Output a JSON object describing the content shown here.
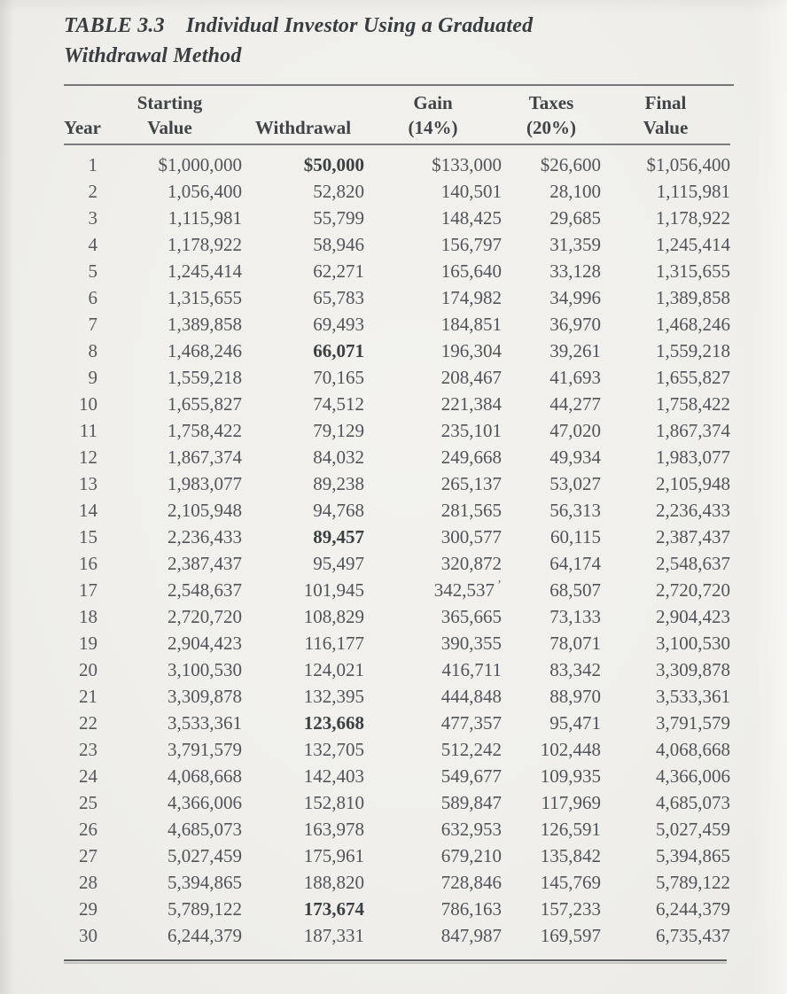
{
  "title": {
    "label": "TABLE 3.3",
    "line1_text": "Individual Investor Using a Graduated",
    "line2_text": "Withdrawal Method"
  },
  "table": {
    "columns": [
      {
        "id": "year",
        "line1": "",
        "line2": "Year"
      },
      {
        "id": "starting_value",
        "line1": "Starting",
        "line2": "Value"
      },
      {
        "id": "withdrawal",
        "line1": "",
        "line2": "Withdrawal"
      },
      {
        "id": "gain",
        "line1": "Gain",
        "line2": "(14%)"
      },
      {
        "id": "taxes",
        "line1": "Taxes",
        "line2": "(20%)"
      },
      {
        "id": "final_value",
        "line1": "Final",
        "line2": "Value"
      }
    ],
    "bold_withdrawal_years": [
      1,
      8,
      15,
      22,
      29
    ],
    "pen_mark": {
      "year": 17,
      "glyph": "ʼ"
    },
    "rows": [
      {
        "year": "1",
        "starting_value": "$1,000,000",
        "withdrawal": "$50,000",
        "gain": "$133,000",
        "taxes": "$26,600",
        "final_value": "$1,056,400"
      },
      {
        "year": "2",
        "starting_value": "1,056,400",
        "withdrawal": "52,820",
        "gain": "140,501",
        "taxes": "28,100",
        "final_value": "1,115,981"
      },
      {
        "year": "3",
        "starting_value": "1,115,981",
        "withdrawal": "55,799",
        "gain": "148,425",
        "taxes": "29,685",
        "final_value": "1,178,922"
      },
      {
        "year": "4",
        "starting_value": "1,178,922",
        "withdrawal": "58,946",
        "gain": "156,797",
        "taxes": "31,359",
        "final_value": "1,245,414"
      },
      {
        "year": "5",
        "starting_value": "1,245,414",
        "withdrawal": "62,271",
        "gain": "165,640",
        "taxes": "33,128",
        "final_value": "1,315,655"
      },
      {
        "year": "6",
        "starting_value": "1,315,655",
        "withdrawal": "65,783",
        "gain": "174,982",
        "taxes": "34,996",
        "final_value": "1,389,858"
      },
      {
        "year": "7",
        "starting_value": "1,389,858",
        "withdrawal": "69,493",
        "gain": "184,851",
        "taxes": "36,970",
        "final_value": "1,468,246"
      },
      {
        "year": "8",
        "starting_value": "1,468,246",
        "withdrawal": "66,071",
        "gain": "196,304",
        "taxes": "39,261",
        "final_value": "1,559,218"
      },
      {
        "year": "9",
        "starting_value": "1,559,218",
        "withdrawal": "70,165",
        "gain": "208,467",
        "taxes": "41,693",
        "final_value": "1,655,827"
      },
      {
        "year": "10",
        "starting_value": "1,655,827",
        "withdrawal": "74,512",
        "gain": "221,384",
        "taxes": "44,277",
        "final_value": "1,758,422"
      },
      {
        "year": "11",
        "starting_value": "1,758,422",
        "withdrawal": "79,129",
        "gain": "235,101",
        "taxes": "47,020",
        "final_value": "1,867,374"
      },
      {
        "year": "12",
        "starting_value": "1,867,374",
        "withdrawal": "84,032",
        "gain": "249,668",
        "taxes": "49,934",
        "final_value": "1,983,077"
      },
      {
        "year": "13",
        "starting_value": "1,983,077",
        "withdrawal": "89,238",
        "gain": "265,137",
        "taxes": "53,027",
        "final_value": "2,105,948"
      },
      {
        "year": "14",
        "starting_value": "2,105,948",
        "withdrawal": "94,768",
        "gain": "281,565",
        "taxes": "56,313",
        "final_value": "2,236,433"
      },
      {
        "year": "15",
        "starting_value": "2,236,433",
        "withdrawal": "89,457",
        "gain": "300,577",
        "taxes": "60,115",
        "final_value": "2,387,437"
      },
      {
        "year": "16",
        "starting_value": "2,387,437",
        "withdrawal": "95,497",
        "gain": "320,872",
        "taxes": "64,174",
        "final_value": "2,548,637"
      },
      {
        "year": "17",
        "starting_value": "2,548,637",
        "withdrawal": "101,945",
        "gain": "342,537",
        "taxes": "68,507",
        "final_value": "2,720,720"
      },
      {
        "year": "18",
        "starting_value": "2,720,720",
        "withdrawal": "108,829",
        "gain": "365,665",
        "taxes": "73,133",
        "final_value": "2,904,423"
      },
      {
        "year": "19",
        "starting_value": "2,904,423",
        "withdrawal": "116,177",
        "gain": "390,355",
        "taxes": "78,071",
        "final_value": "3,100,530"
      },
      {
        "year": "20",
        "starting_value": "3,100,530",
        "withdrawal": "124,021",
        "gain": "416,711",
        "taxes": "83,342",
        "final_value": "3,309,878"
      },
      {
        "year": "21",
        "starting_value": "3,309,878",
        "withdrawal": "132,395",
        "gain": "444,848",
        "taxes": "88,970",
        "final_value": "3,533,361"
      },
      {
        "year": "22",
        "starting_value": "3,533,361",
        "withdrawal": "123,668",
        "gain": "477,357",
        "taxes": "95,471",
        "final_value": "3,791,579"
      },
      {
        "year": "23",
        "starting_value": "3,791,579",
        "withdrawal": "132,705",
        "gain": "512,242",
        "taxes": "102,448",
        "final_value": "4,068,668"
      },
      {
        "year": "24",
        "starting_value": "4,068,668",
        "withdrawal": "142,403",
        "gain": "549,677",
        "taxes": "109,935",
        "final_value": "4,366,006"
      },
      {
        "year": "25",
        "starting_value": "4,366,006",
        "withdrawal": "152,810",
        "gain": "589,847",
        "taxes": "117,969",
        "final_value": "4,685,073"
      },
      {
        "year": "26",
        "starting_value": "4,685,073",
        "withdrawal": "163,978",
        "gain": "632,953",
        "taxes": "126,591",
        "final_value": "5,027,459"
      },
      {
        "year": "27",
        "starting_value": "5,027,459",
        "withdrawal": "175,961",
        "gain": "679,210",
        "taxes": "135,842",
        "final_value": "5,394,865"
      },
      {
        "year": "28",
        "starting_value": "5,394,865",
        "withdrawal": "188,820",
        "gain": "728,846",
        "taxes": "145,769",
        "final_value": "5,789,122"
      },
      {
        "year": "29",
        "starting_value": "5,789,122",
        "withdrawal": "173,674",
        "gain": "786,163",
        "taxes": "157,233",
        "final_value": "6,244,379"
      },
      {
        "year": "30",
        "starting_value": "6,244,379",
        "withdrawal": "187,331",
        "gain": "847,987",
        "taxes": "169,597",
        "final_value": "6,735,437"
      }
    ]
  }
}
